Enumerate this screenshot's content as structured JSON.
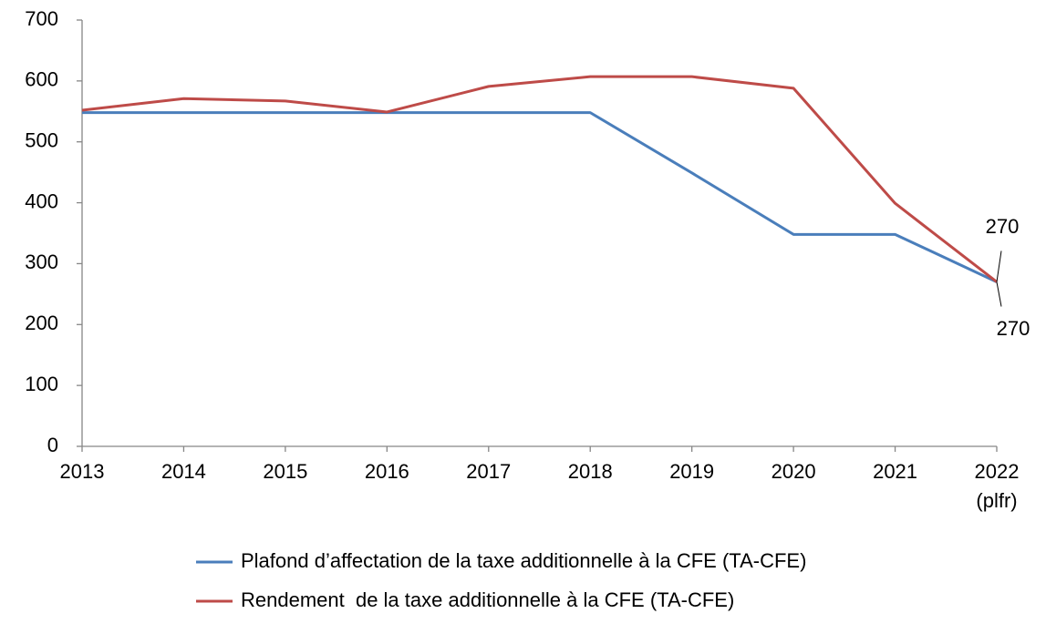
{
  "chart_data": {
    "type": "line",
    "categories": [
      "2013",
      "2014",
      "2015",
      "2016",
      "2017",
      "2018",
      "2019",
      "2020",
      "2021",
      "2022\n(plfr)"
    ],
    "series": [
      {
        "name": "Plafond d’affectation de la taxe additionnelle à la CFE (TA-CFE)",
        "color": "#4a7ebb",
        "values": [
          548,
          548,
          548,
          548,
          548,
          548,
          449,
          348,
          348,
          270
        ]
      },
      {
        "name": "Rendement  de la taxe additionnelle à la CFE (TA-CFE)",
        "color": "#be4b48",
        "values": [
          552,
          571,
          567,
          549,
          591,
          607,
          607,
          588,
          399,
          270
        ]
      }
    ],
    "ylim": [
      0,
      700
    ],
    "yticks": [
      0,
      100,
      200,
      300,
      400,
      500,
      600,
      700
    ],
    "grid": false,
    "legend": "bottom"
  }
}
